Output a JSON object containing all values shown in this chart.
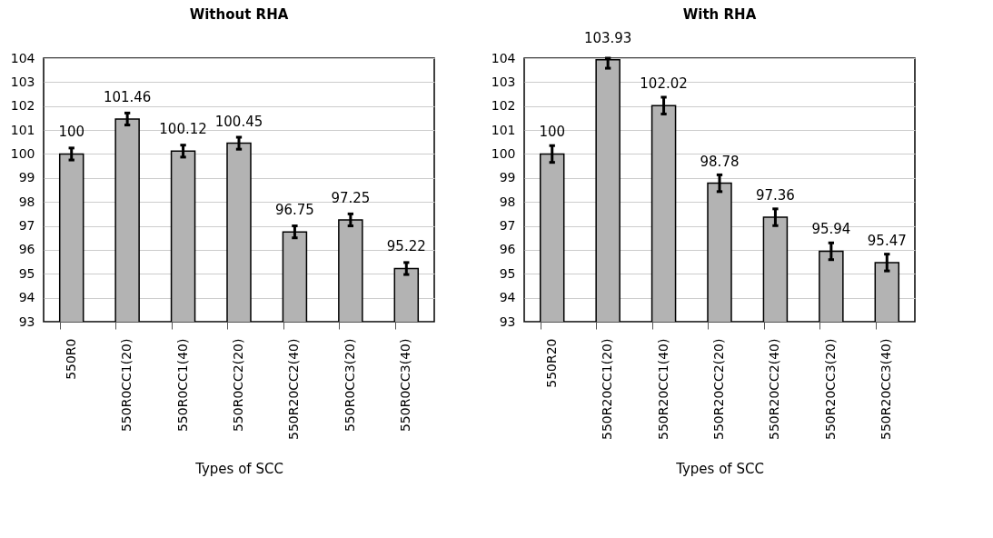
{
  "chart_data": [
    {
      "type": "bar",
      "title": "Without RHA",
      "xlabel": "Types of SCC",
      "categories": [
        "550R0",
        "550R0CC1(20)",
        "550R0CC1(40)",
        "550R0CC2(20)",
        "550R20CC2(40)",
        "550R0CC3(20)",
        "550R0CC3(40)"
      ],
      "values": [
        100,
        101.46,
        100.12,
        100.45,
        96.75,
        97.25,
        95.22
      ],
      "errors": [
        0.25,
        0.25,
        0.25,
        0.25,
        0.25,
        0.25,
        0.25
      ],
      "color": "#b3b3b3",
      "ylim": [
        93,
        104
      ],
      "yticks": [
        93,
        94,
        95,
        96,
        97,
        98,
        99,
        100,
        101,
        102,
        103,
        104
      ],
      "grid": "y",
      "data_labels": true
    },
    {
      "type": "bar",
      "title": "With RHA",
      "xlabel": "Types of SCC",
      "categories": [
        "550R20",
        "550R20CC1(20)",
        "550R20CC1(40)",
        "550R20CC2(20)",
        "550R20CC2(40)",
        "550R20CC3(20)",
        "550R20CC3(40)"
      ],
      "values": [
        100,
        103.93,
        102.02,
        98.78,
        97.36,
        95.94,
        95.47
      ],
      "errors": [
        0.35,
        [
          103.58,
          104
        ],
        0.35,
        0.35,
        0.35,
        0.35,
        0.35
      ],
      "color": "#b3b3b3",
      "ylim": [
        93,
        104
      ],
      "yticks": [
        93,
        94,
        95,
        96,
        97,
        98,
        99,
        100,
        101,
        102,
        103,
        104
      ],
      "grid": "y",
      "data_labels": true
    }
  ]
}
